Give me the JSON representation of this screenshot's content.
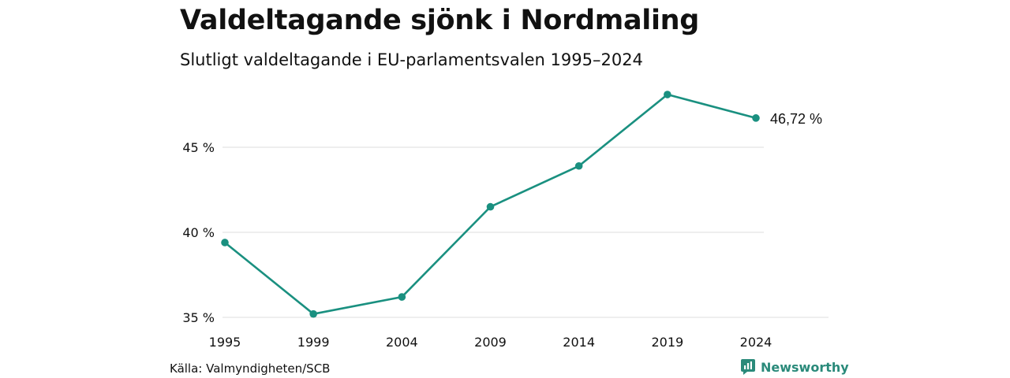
{
  "title": "Valdeltagande sjönk i Nordmaling",
  "subtitle": "Slutligt valdeltagande i EU-parlamentsvalen 1995–2024",
  "source": "Källa: Valmyndigheten/SCB",
  "brand": {
    "name": "Newsworthy",
    "icon": "newsworthy-logo-icon",
    "color": "#2a8a7a"
  },
  "chart_data": {
    "type": "line",
    "x": [
      "1995",
      "1999",
      "2004",
      "2009",
      "2014",
      "2019",
      "2024"
    ],
    "series": [
      {
        "values": [
          39.4,
          35.2,
          36.2,
          41.5,
          43.9,
          48.1,
          46.72
        ],
        "color": "#1a9080"
      }
    ],
    "y_ticks": [
      35,
      40,
      45
    ],
    "y_tick_labels": [
      "35 %",
      "40 %",
      "45 %"
    ],
    "ylim": [
      35,
      50
    ],
    "end_label": "46,72 %",
    "grid": true
  }
}
